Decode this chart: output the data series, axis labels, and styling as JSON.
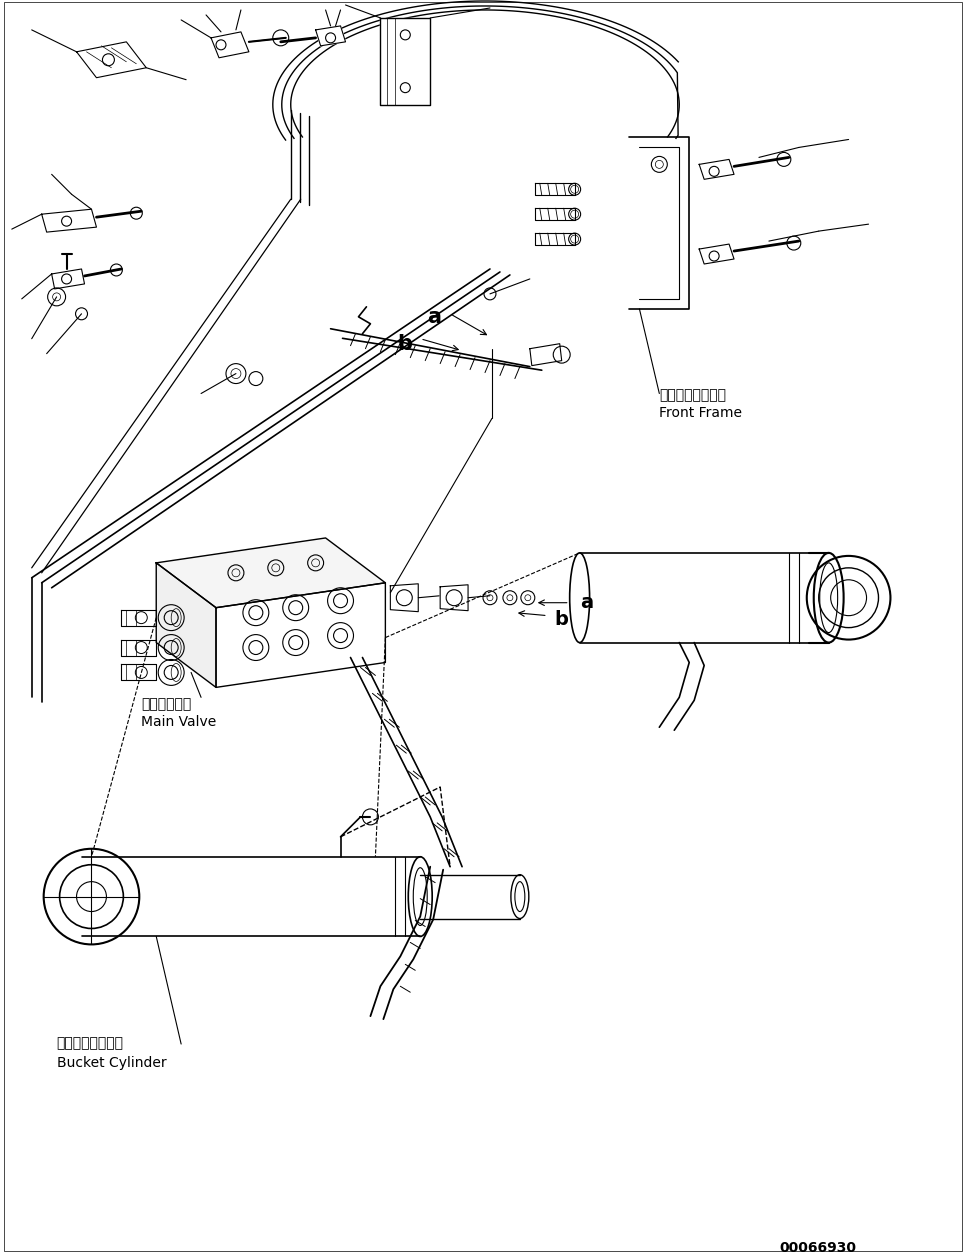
{
  "background_color": "#ffffff",
  "line_color": "#000000",
  "fig_width": 9.66,
  "fig_height": 12.58,
  "dpi": 100,
  "part_number": "00066930",
  "labels": {
    "front_frame_jp": "フロントフレーム",
    "front_frame_en": "Front Frame",
    "main_valve_jp": "メインバルブ",
    "main_valve_en": "Main Valve",
    "bucket_cylinder_jp": "バケットシリンダ",
    "bucket_cylinder_en": "Bucket Cylinder"
  }
}
